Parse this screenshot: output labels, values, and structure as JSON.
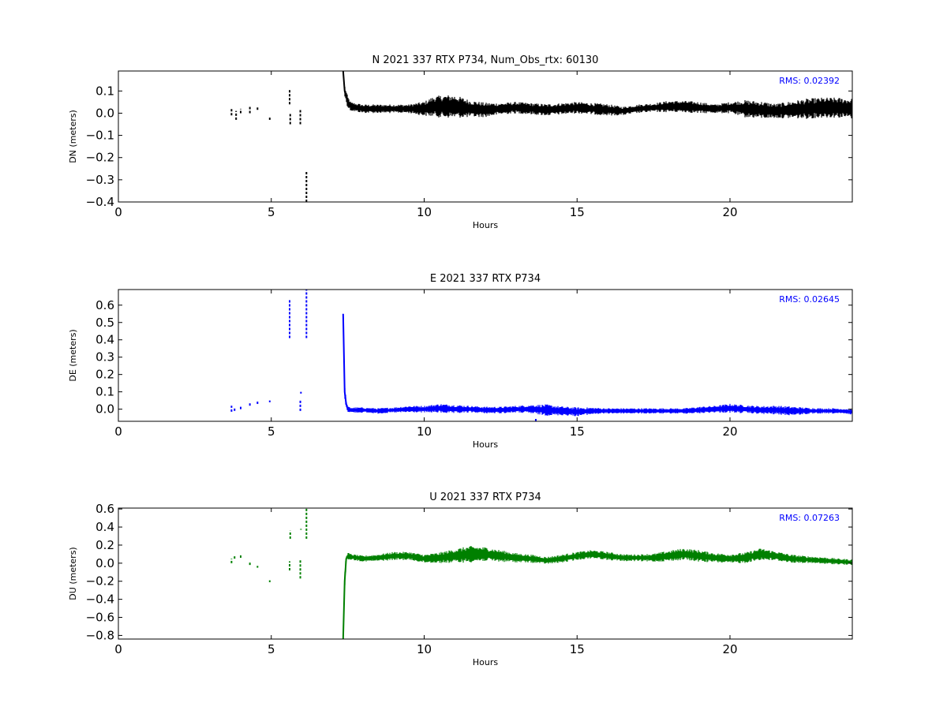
{
  "figure": {
    "background": "#ffffff"
  },
  "chart_data": [
    {
      "type": "line",
      "title": "N 2021 337 RTX  P734, Num_Obs_rtx: 60130",
      "xlabel": "Hours",
      "ylabel": "DN (meters)",
      "xlim": [
        0,
        24
      ],
      "ylim": [
        -0.4,
        0.19
      ],
      "xticks": [
        0,
        5,
        10,
        15,
        20
      ],
      "xtick_labels": [
        "0",
        "5",
        "10",
        "15",
        "20"
      ],
      "yticks": [
        0.1,
        0.0,
        -0.1,
        -0.2,
        -0.3,
        -0.4
      ],
      "ytick_labels": [
        "0.1",
        "0.0",
        "−0.1",
        "−0.2",
        "−0.3",
        "−0.4"
      ],
      "color": "#000000",
      "annotation": "RMS:  0.02392",
      "annotation_color": "#0000ff",
      "series": [
        {
          "x": [
            7.35,
            7.4,
            7.5,
            7.6,
            7.8,
            8.0,
            8.5,
            9.0,
            9.5,
            10.0,
            10.3,
            10.6,
            11.0,
            11.5,
            12.0,
            12.5,
            13.0,
            13.5,
            14.0,
            14.5,
            15.0,
            15.5,
            16.0,
            16.5,
            17.0,
            17.5,
            18.0,
            18.5,
            19.0,
            19.5,
            20.0,
            20.5,
            21.0,
            21.5,
            22.0,
            22.5,
            23.0,
            23.5,
            24.0
          ],
          "y": [
            0.19,
            0.1,
            0.05,
            0.03,
            0.025,
            0.02,
            0.02,
            0.02,
            0.02,
            0.02,
            0.03,
            0.03,
            0.03,
            0.02,
            0.015,
            0.02,
            0.025,
            0.02,
            0.015,
            0.02,
            0.025,
            0.02,
            0.015,
            0.01,
            0.02,
            0.025,
            0.03,
            0.03,
            0.025,
            0.02,
            0.025,
            0.02,
            0.015,
            0.01,
            0.015,
            0.02,
            0.025,
            0.025,
            0.02
          ],
          "band": [
            0.005,
            0.02,
            0.02,
            0.015,
            0.015,
            0.015,
            0.015,
            0.015,
            0.015,
            0.025,
            0.035,
            0.04,
            0.04,
            0.03,
            0.025,
            0.02,
            0.02,
            0.02,
            0.02,
            0.02,
            0.02,
            0.02,
            0.02,
            0.015,
            0.015,
            0.015,
            0.02,
            0.02,
            0.02,
            0.015,
            0.02,
            0.03,
            0.03,
            0.025,
            0.03,
            0.035,
            0.035,
            0.035,
            0.035
          ]
        }
      ],
      "sparse_segments": [
        {
          "x": 3.7,
          "y0": -0.01,
          "y1": 0.02
        },
        {
          "x": 3.85,
          "y0": -0.03,
          "y1": 0.01
        },
        {
          "x": 4.0,
          "y0": 0.0,
          "y1": 0.02
        },
        {
          "x": 4.3,
          "y0": 0.0,
          "y1": 0.03
        },
        {
          "x": 4.55,
          "y0": 0.015,
          "y1": 0.03
        },
        {
          "x": 4.95,
          "y0": -0.03,
          "y1": -0.02
        },
        {
          "x": 5.6,
          "y0": 0.04,
          "y1": 0.11
        },
        {
          "x": 5.62,
          "y0": -0.05,
          "y1": 0.0
        },
        {
          "x": 5.95,
          "y0": -0.05,
          "y1": 0.02
        },
        {
          "x": 6.15,
          "y0": -0.4,
          "y1": -0.26
        }
      ]
    },
    {
      "type": "line",
      "title": "E 2021 337 RTX  P734",
      "xlabel": "Hours",
      "ylabel": "DE (meters)",
      "xlim": [
        0,
        24
      ],
      "ylim": [
        -0.07,
        0.69
      ],
      "xticks": [
        0,
        5,
        10,
        15,
        20
      ],
      "xtick_labels": [
        "0",
        "5",
        "10",
        "15",
        "20"
      ],
      "yticks": [
        0.6,
        0.5,
        0.4,
        0.3,
        0.2,
        0.1,
        0.0
      ],
      "ytick_labels": [
        "0.6",
        "0.5",
        "0.4",
        "0.3",
        "0.2",
        "0.1",
        "0.0"
      ],
      "color": "#0000ff",
      "annotation": "RMS:  0.02645",
      "annotation_color": "#0000ff",
      "series": [
        {
          "x": [
            7.35,
            7.4,
            7.45,
            7.5,
            7.6,
            7.8,
            8.0,
            8.5,
            9.0,
            9.5,
            10.0,
            10.5,
            11.0,
            11.5,
            12.0,
            12.5,
            13.0,
            13.5,
            14.0,
            14.5,
            15.0,
            15.5,
            16.0,
            16.5,
            17.0,
            17.5,
            18.0,
            18.5,
            19.0,
            19.5,
            20.0,
            20.5,
            21.0,
            21.5,
            22.0,
            22.5,
            23.0,
            23.5,
            24.0
          ],
          "y": [
            0.55,
            0.1,
            0.03,
            0.0,
            -0.005,
            -0.005,
            -0.005,
            -0.01,
            -0.005,
            0.0,
            0.0,
            0.005,
            0.0,
            0.0,
            -0.005,
            -0.005,
            0.0,
            0.0,
            -0.005,
            -0.01,
            -0.015,
            -0.01,
            -0.01,
            -0.01,
            -0.01,
            -0.01,
            -0.01,
            -0.01,
            -0.005,
            0.0,
            0.005,
            0.0,
            -0.005,
            -0.005,
            -0.01,
            -0.01,
            -0.01,
            -0.01,
            -0.015
          ],
          "band": [
            0.005,
            0.03,
            0.02,
            0.012,
            0.012,
            0.012,
            0.012,
            0.012,
            0.012,
            0.015,
            0.015,
            0.02,
            0.02,
            0.015,
            0.015,
            0.015,
            0.015,
            0.02,
            0.025,
            0.02,
            0.02,
            0.015,
            0.012,
            0.012,
            0.012,
            0.012,
            0.012,
            0.012,
            0.015,
            0.015,
            0.02,
            0.018,
            0.018,
            0.02,
            0.02,
            0.015,
            0.012,
            0.012,
            0.012
          ]
        }
      ],
      "sparse_segments": [
        {
          "x": 3.7,
          "y0": -0.015,
          "y1": 0.02
        },
        {
          "x": 3.8,
          "y0": -0.01,
          "y1": 0.01
        },
        {
          "x": 4.0,
          "y0": 0.0,
          "y1": 0.02
        },
        {
          "x": 4.3,
          "y0": 0.02,
          "y1": 0.035
        },
        {
          "x": 4.55,
          "y0": 0.03,
          "y1": 0.05
        },
        {
          "x": 4.95,
          "y0": 0.04,
          "y1": 0.05
        },
        {
          "x": 5.6,
          "y0": 0.41,
          "y1": 0.63
        },
        {
          "x": 5.95,
          "y0": -0.01,
          "y1": 0.05
        },
        {
          "x": 5.97,
          "y0": 0.09,
          "y1": 0.1
        },
        {
          "x": 6.15,
          "y0": 0.41,
          "y1": 0.69
        },
        {
          "x": 13.65,
          "y0": -0.07,
          "y1": -0.05
        }
      ]
    },
    {
      "type": "line",
      "title": "U 2021 337 RTX  P734",
      "xlabel": "Hours",
      "ylabel": "DU (meters)",
      "xlim": [
        0,
        24
      ],
      "ylim": [
        -0.84,
        0.61
      ],
      "xticks": [
        0,
        5,
        10,
        15,
        20
      ],
      "xtick_labels": [
        "0",
        "5",
        "10",
        "15",
        "20"
      ],
      "yticks": [
        0.6,
        0.4,
        0.2,
        0.0,
        -0.2,
        -0.4,
        -0.6,
        -0.8
      ],
      "ytick_labels": [
        "0.6",
        "0.4",
        "0.2",
        "0.0",
        "−0.2",
        "−0.4",
        "−0.6",
        "−0.8"
      ],
      "color": "#008000",
      "annotation": "RMS:  0.07263",
      "annotation_color": "#0000ff",
      "series": [
        {
          "x": [
            7.35,
            7.4,
            7.45,
            7.5,
            7.6,
            7.8,
            8.0,
            8.5,
            9.0,
            9.5,
            10.0,
            10.5,
            11.0,
            11.5,
            12.0,
            12.5,
            13.0,
            13.5,
            14.0,
            14.5,
            15.0,
            15.5,
            16.0,
            16.5,
            17.0,
            17.5,
            18.0,
            18.5,
            19.0,
            19.5,
            20.0,
            20.5,
            21.0,
            21.5,
            22.0,
            22.5,
            23.0,
            23.5,
            24.0
          ],
          "y": [
            -0.84,
            -0.2,
            0.05,
            0.08,
            0.07,
            0.06,
            0.05,
            0.06,
            0.08,
            0.08,
            0.05,
            0.06,
            0.08,
            0.1,
            0.1,
            0.08,
            0.06,
            0.05,
            0.03,
            0.05,
            0.08,
            0.1,
            0.08,
            0.06,
            0.06,
            0.06,
            0.08,
            0.1,
            0.08,
            0.06,
            0.05,
            0.06,
            0.1,
            0.08,
            0.05,
            0.04,
            0.03,
            0.02,
            0.01
          ],
          "band": [
            0.01,
            0.1,
            0.03,
            0.03,
            0.025,
            0.025,
            0.025,
            0.03,
            0.035,
            0.035,
            0.035,
            0.045,
            0.06,
            0.07,
            0.06,
            0.05,
            0.04,
            0.035,
            0.03,
            0.035,
            0.035,
            0.035,
            0.035,
            0.03,
            0.03,
            0.035,
            0.045,
            0.05,
            0.05,
            0.04,
            0.04,
            0.045,
            0.05,
            0.04,
            0.035,
            0.03,
            0.03,
            0.025,
            0.025
          ]
        }
      ],
      "sparse_segments": [
        {
          "x": 3.7,
          "y0": 0.0,
          "y1": 0.05
        },
        {
          "x": 3.8,
          "y0": 0.05,
          "y1": 0.08
        },
        {
          "x": 4.0,
          "y0": 0.06,
          "y1": 0.09
        },
        {
          "x": 4.3,
          "y0": -0.02,
          "y1": 0.02
        },
        {
          "x": 4.55,
          "y0": -0.05,
          "y1": -0.03
        },
        {
          "x": 4.95,
          "y0": -0.21,
          "y1": -0.19
        },
        {
          "x": 5.6,
          "y0": -0.08,
          "y1": 0.02
        },
        {
          "x": 5.62,
          "y0": 0.27,
          "y1": 0.36
        },
        {
          "x": 5.95,
          "y0": -0.17,
          "y1": 0.04
        },
        {
          "x": 5.97,
          "y0": 0.37,
          "y1": 0.38
        },
        {
          "x": 6.15,
          "y0": 0.27,
          "y1": 0.61
        }
      ]
    }
  ]
}
